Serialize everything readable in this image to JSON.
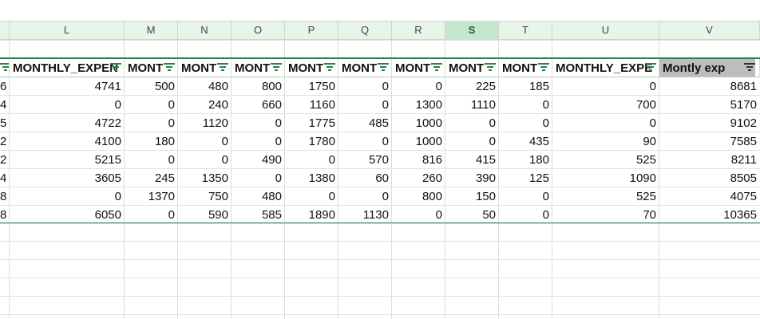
{
  "columns": [
    {
      "letter": "",
      "header": "",
      "selected": false
    },
    {
      "letter": "L",
      "header": "MONTHLY_EXPEN",
      "selected": false
    },
    {
      "letter": "M",
      "header": "MONT",
      "selected": false
    },
    {
      "letter": "N",
      "header": "MONT",
      "selected": false
    },
    {
      "letter": "O",
      "header": "MONT",
      "selected": false
    },
    {
      "letter": "P",
      "header": "MONT",
      "selected": false
    },
    {
      "letter": "Q",
      "header": "MONT",
      "selected": false
    },
    {
      "letter": "R",
      "header": "MONT",
      "selected": false
    },
    {
      "letter": "S",
      "header": "MONT",
      "selected": true
    },
    {
      "letter": "T",
      "header": "MONT",
      "selected": false
    },
    {
      "letter": "U",
      "header": "MONTHLY_EXPE",
      "selected": false
    },
    {
      "letter": "V",
      "header": "Montly exp",
      "selected": false
    }
  ],
  "rows": [
    [
      "6",
      "4741",
      "500",
      "480",
      "800",
      "1750",
      "0",
      "0",
      "225",
      "185",
      "0",
      "8681"
    ],
    [
      "4",
      "0",
      "0",
      "240",
      "660",
      "1160",
      "0",
      "1300",
      "1110",
      "0",
      "700",
      "5170"
    ],
    [
      "5",
      "4722",
      "0",
      "1120",
      "0",
      "1775",
      "485",
      "1000",
      "0",
      "0",
      "0",
      "9102"
    ],
    [
      "2",
      "4100",
      "180",
      "0",
      "0",
      "1780",
      "0",
      "1000",
      "0",
      "435",
      "90",
      "7585"
    ],
    [
      "2",
      "5215",
      "0",
      "0",
      "490",
      "0",
      "570",
      "816",
      "415",
      "180",
      "525",
      "8211"
    ],
    [
      "4",
      "3605",
      "245",
      "1350",
      "0",
      "1380",
      "60",
      "260",
      "390",
      "125",
      "1090",
      "8505"
    ],
    [
      "8",
      "0",
      "1370",
      "750",
      "480",
      "0",
      "0",
      "800",
      "150",
      "0",
      "525",
      "4075"
    ],
    [
      "8",
      "6050",
      "0",
      "590",
      "585",
      "1890",
      "1130",
      "0",
      "50",
      "0",
      "70",
      "10365"
    ]
  ],
  "colors": {
    "accent": "#2f7d4a",
    "header_band": "#e6f4e9",
    "selected_col": "#c5e6cf",
    "highlight_header": "#bdbdbd"
  }
}
